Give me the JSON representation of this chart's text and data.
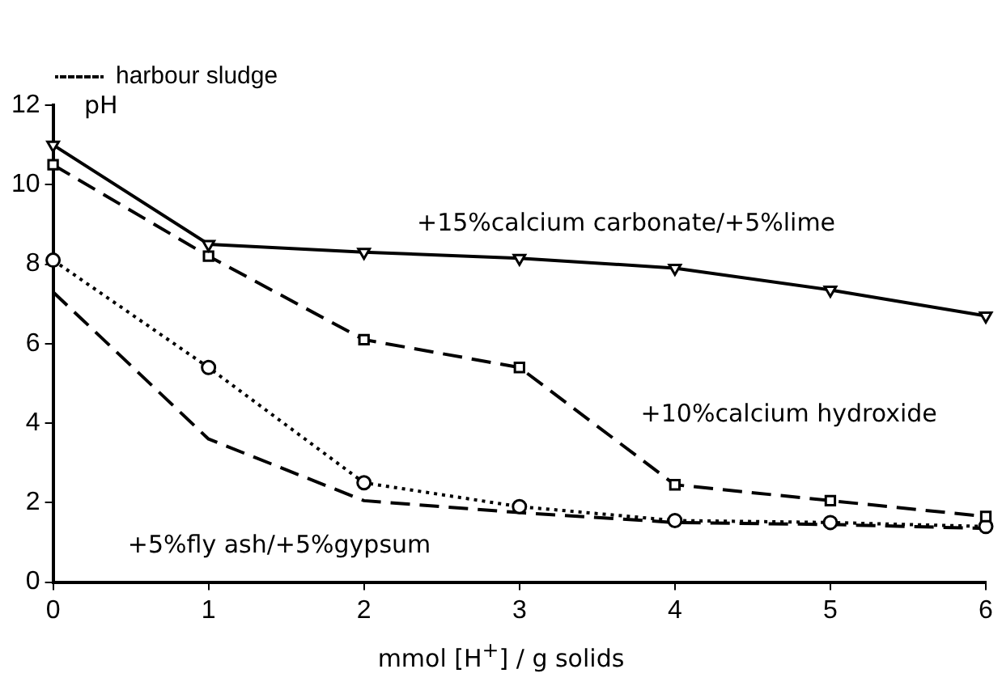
{
  "chart_data": {
    "type": "line",
    "xlabel": "mmol [H$^{+}$] / g solids",
    "ylabel": "pH",
    "x": [
      0,
      1,
      2,
      3,
      4,
      5,
      6
    ],
    "xlim": [
      0,
      6
    ],
    "ylim": [
      0,
      12
    ],
    "xticks": [
      0,
      1,
      2,
      3,
      4,
      5,
      6
    ],
    "yticks": [
      0,
      2,
      4,
      6,
      8,
      10,
      12
    ],
    "grid": false,
    "legend": "top",
    "series": [
      {
        "color": "#000000",
        "marker": "triangle",
        "line_style": "solid",
        "values": [
          11.0,
          8.5,
          8.3,
          8.15,
          7.9,
          7.35,
          6.7
        ]
      },
      {
        "color": "#000000",
        "marker": "square",
        "line_style": "dashed",
        "values": [
          10.5,
          8.2,
          6.1,
          5.4,
          2.45,
          2.05,
          1.65
        ]
      },
      {
        "name": "harbour sludge",
        "color": "#000000",
        "marker": "circle",
        "line_style": "dotted",
        "values": [
          8.1,
          5.4,
          2.5,
          1.9,
          1.55,
          1.5,
          1.4
        ]
      },
      {
        "color": "#000000",
        "marker": "none",
        "line_style": "dashed",
        "values": [
          7.3,
          3.6,
          2.05,
          1.75,
          1.5,
          1.45,
          1.35
        ]
      }
    ],
    "annotations": [
      "+15%calcium carbonate/+5%lime",
      "+10%calcium hydroxide",
      "+5%fly ash/+5%gypsum"
    ]
  }
}
